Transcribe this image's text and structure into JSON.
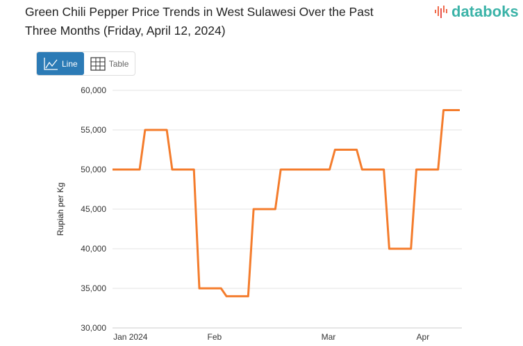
{
  "title": "Green Chili Pepper Price Trends in West Sulawesi Over the Past Three Months (Friday, April 12, 2024)",
  "logo": "databoks",
  "buttons": {
    "line": "Line",
    "table": "Table"
  },
  "chart_data": {
    "type": "line",
    "title": "Green Chili Pepper Price Trends in West Sulawesi Over the Past Three Months (Friday, April 12, 2024)",
    "xlabel": "",
    "ylabel": "Rupiah per Kg",
    "ylim": [
      30000,
      60000
    ],
    "yticks": [
      30000,
      35000,
      40000,
      45000,
      50000,
      55000,
      60000
    ],
    "ytick_labels": [
      "30,000",
      "35,000",
      "40,000",
      "45,000",
      "50,000",
      "55,000",
      "60,000"
    ],
    "xticks": [
      {
        "label": "Jan 2024",
        "index": 3.3
      },
      {
        "label": "Feb",
        "index": 18.8
      },
      {
        "label": "Mar",
        "index": 39.8
      },
      {
        "label": "Apr",
        "index": 57.2
      }
    ],
    "series": [
      {
        "name": "Green Chili Pepper",
        "color": "#f47c2c",
        "values": [
          50000,
          50000,
          50000,
          50000,
          50000,
          50000,
          55000,
          55000,
          55000,
          55000,
          55000,
          50000,
          50000,
          50000,
          50000,
          50000,
          35000,
          35000,
          35000,
          35000,
          35000,
          34000,
          34000,
          34000,
          34000,
          34000,
          45000,
          45000,
          45000,
          45000,
          45000,
          50000,
          50000,
          50000,
          50000,
          50000,
          50000,
          50000,
          50000,
          50000,
          50000,
          52500,
          52500,
          52500,
          52500,
          52500,
          50000,
          50000,
          50000,
          50000,
          50000,
          40000,
          40000,
          40000,
          40000,
          40000,
          50000,
          50000,
          50000,
          50000,
          50000,
          57500,
          57500,
          57500,
          57500
        ]
      }
    ],
    "grid": true
  }
}
